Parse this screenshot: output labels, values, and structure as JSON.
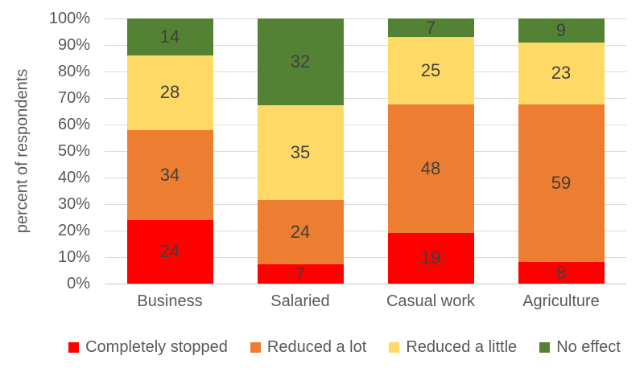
{
  "chart_data": {
    "type": "bar",
    "stacked": true,
    "percent_stacked": true,
    "title": "",
    "xlabel": "",
    "ylabel": "percent of respondents",
    "ylim": [
      0,
      100
    ],
    "grid": true,
    "legend_position": "bottom",
    "y_ticks": [
      "0%",
      "10%",
      "20%",
      "30%",
      "40%",
      "50%",
      "60%",
      "70%",
      "80%",
      "90%",
      "100%"
    ],
    "categories": [
      "Business",
      "Salaried",
      "Casual work",
      "Agriculture"
    ],
    "series": [
      {
        "name": "Completely stopped",
        "color": "#ff0000",
        "values": [
          24,
          7,
          19,
          8
        ]
      },
      {
        "name": "Reduced a lot",
        "color": "#ed7d31",
        "values": [
          34,
          24,
          48,
          59
        ]
      },
      {
        "name": "Reduced a little",
        "color": "#ffd966",
        "values": [
          28,
          35,
          25,
          23
        ]
      },
      {
        "name": "No effect",
        "color": "#548235",
        "values": [
          14,
          32,
          7,
          9
        ]
      }
    ]
  },
  "colors": {
    "gridline": "#d9d9d9",
    "axis_text": "#595959",
    "data_label": "#404040",
    "background": "#ffffff"
  }
}
